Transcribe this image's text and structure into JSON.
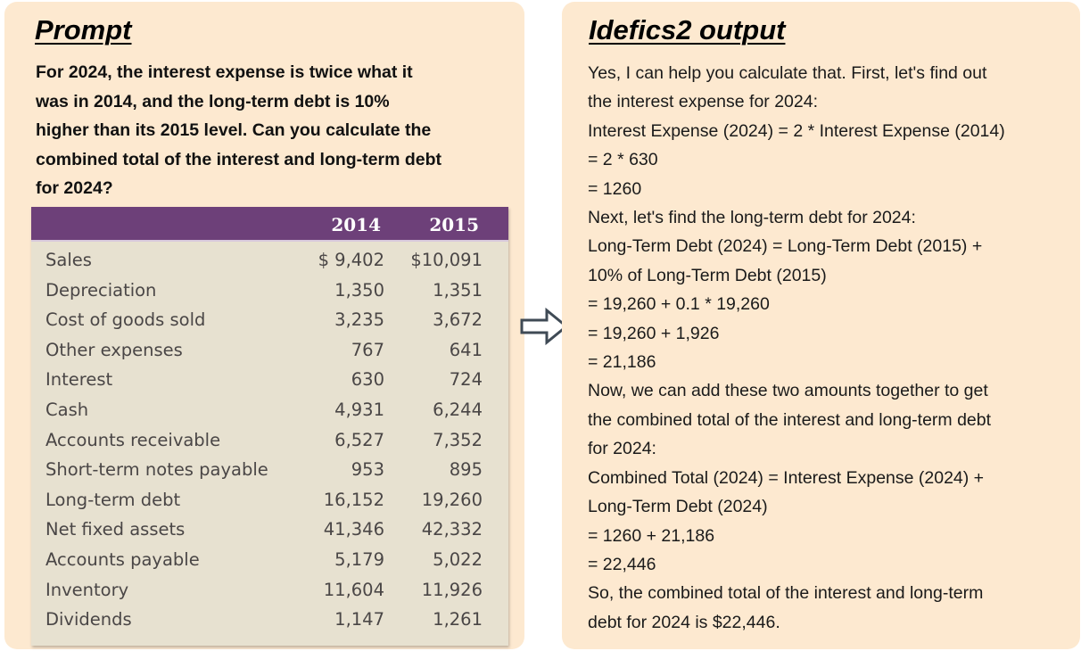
{
  "prompt": {
    "title": "Prompt",
    "lines": [
      "For 2024, the interest expense is twice what it",
      "was in 2014, and the long-term debt is 10%",
      "higher than its 2015 level. Can you calculate the",
      "combined total of the interest and long-term debt",
      "for 2024?"
    ]
  },
  "table": {
    "years": [
      "2014",
      "2015"
    ],
    "rows": [
      {
        "label": "Sales",
        "y2014": "$ 9,402",
        "y2015": "$10,091"
      },
      {
        "label": "Depreciation",
        "y2014": "1,350",
        "y2015": "1,351"
      },
      {
        "label": "Cost of goods sold",
        "y2014": "3,235",
        "y2015": "3,672"
      },
      {
        "label": "Other expenses",
        "y2014": "767",
        "y2015": "641"
      },
      {
        "label": "Interest",
        "y2014": "630",
        "y2015": "724"
      },
      {
        "label": "Cash",
        "y2014": "4,931",
        "y2015": "6,244"
      },
      {
        "label": "Accounts receivable",
        "y2014": "6,527",
        "y2015": "7,352"
      },
      {
        "label": "Short-term notes payable",
        "y2014": "953",
        "y2015": "895"
      },
      {
        "label": "Long-term debt",
        "y2014": "16,152",
        "y2015": "19,260"
      },
      {
        "label": "Net fixed assets",
        "y2014": "41,346",
        "y2015": "42,332"
      },
      {
        "label": "Accounts payable",
        "y2014": "5,179",
        "y2015": "5,022"
      },
      {
        "label": "Inventory",
        "y2014": "11,604",
        "y2015": "11,926"
      },
      {
        "label": "Dividends",
        "y2014": "1,147",
        "y2015": "1,261"
      }
    ]
  },
  "output": {
    "title": "Idefics2 output",
    "lines": [
      "Yes, I can help you calculate that. First, let's find out",
      "the interest expense for 2024:",
      "Interest Expense (2024) = 2 * Interest Expense (2014)",
      "= 2 * 630",
      "= 1260",
      "Next, let's find the long-term debt for 2024:",
      "Long-Term Debt (2024) = Long-Term Debt (2015) +",
      "10% of Long-Term Debt (2015)",
      "= 19,260 + 0.1 * 19,260",
      "= 19,260 + 1,926",
      "= 21,186",
      "Now, we can add these two amounts together to get",
      "the combined total of the interest and long-term debt",
      "for 2024:",
      "Combined Total (2024) = Interest Expense (2024) +",
      "Long-Term Debt (2024)",
      "= 1260 + 21,186",
      "= 22,446",
      "So, the combined total of the interest and long-term",
      "debt for 2024 is $22,446."
    ]
  },
  "colors": {
    "panel_bg": "#fde9d0",
    "table_header": "#6d4079",
    "table_bg": "#e7e1d0"
  }
}
